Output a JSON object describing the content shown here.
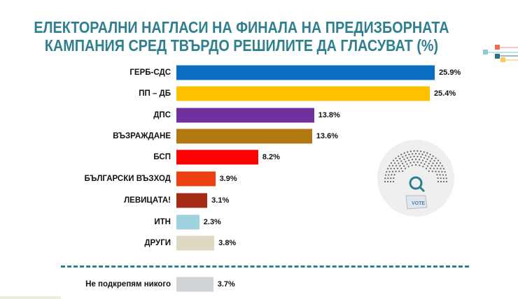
{
  "chart_data": {
    "type": "bar",
    "orientation": "horizontal",
    "title": [
      "ЕЛЕКТОРАЛНИ НАГЛАСИ НА ФИНАЛА НА ПРЕДИЗБОРНАТА",
      "КАМПАНИЯ СРЕД ТВЪРДО РЕШИЛИТЕ ДА ГЛАСУВАТ (%)"
    ],
    "categories": [
      "ГЕРБ-СДС",
      "ПП – ДБ",
      "ДПС",
      "ВЪЗРАЖДАНЕ",
      "БСП",
      "БЪЛГАРСКИ ВЪЗХОД",
      "ЛЕВИЦАТА!",
      "ИТН",
      "ДРУГИ",
      "Не подкрепям никого"
    ],
    "values": [
      25.9,
      25.4,
      13.8,
      13.6,
      8.2,
      3.9,
      3.1,
      2.3,
      3.8,
      3.7
    ],
    "labels": [
      "25.9%",
      "25.4%",
      "13.8%",
      "13.6%",
      "8.2%",
      "3.9%",
      "3.1%",
      "2.3%",
      "3.8%",
      "3.7%"
    ],
    "colors": [
      "#0a6fc2",
      "#ffc000",
      "#7030a0",
      "#b07a10",
      "#ff0000",
      "#ec3f12",
      "#a52a14",
      "#9fd3e0",
      "#ddd9c3",
      "#d0d3d8"
    ],
    "grid": false,
    "vote_icon_text": "VOTE"
  }
}
